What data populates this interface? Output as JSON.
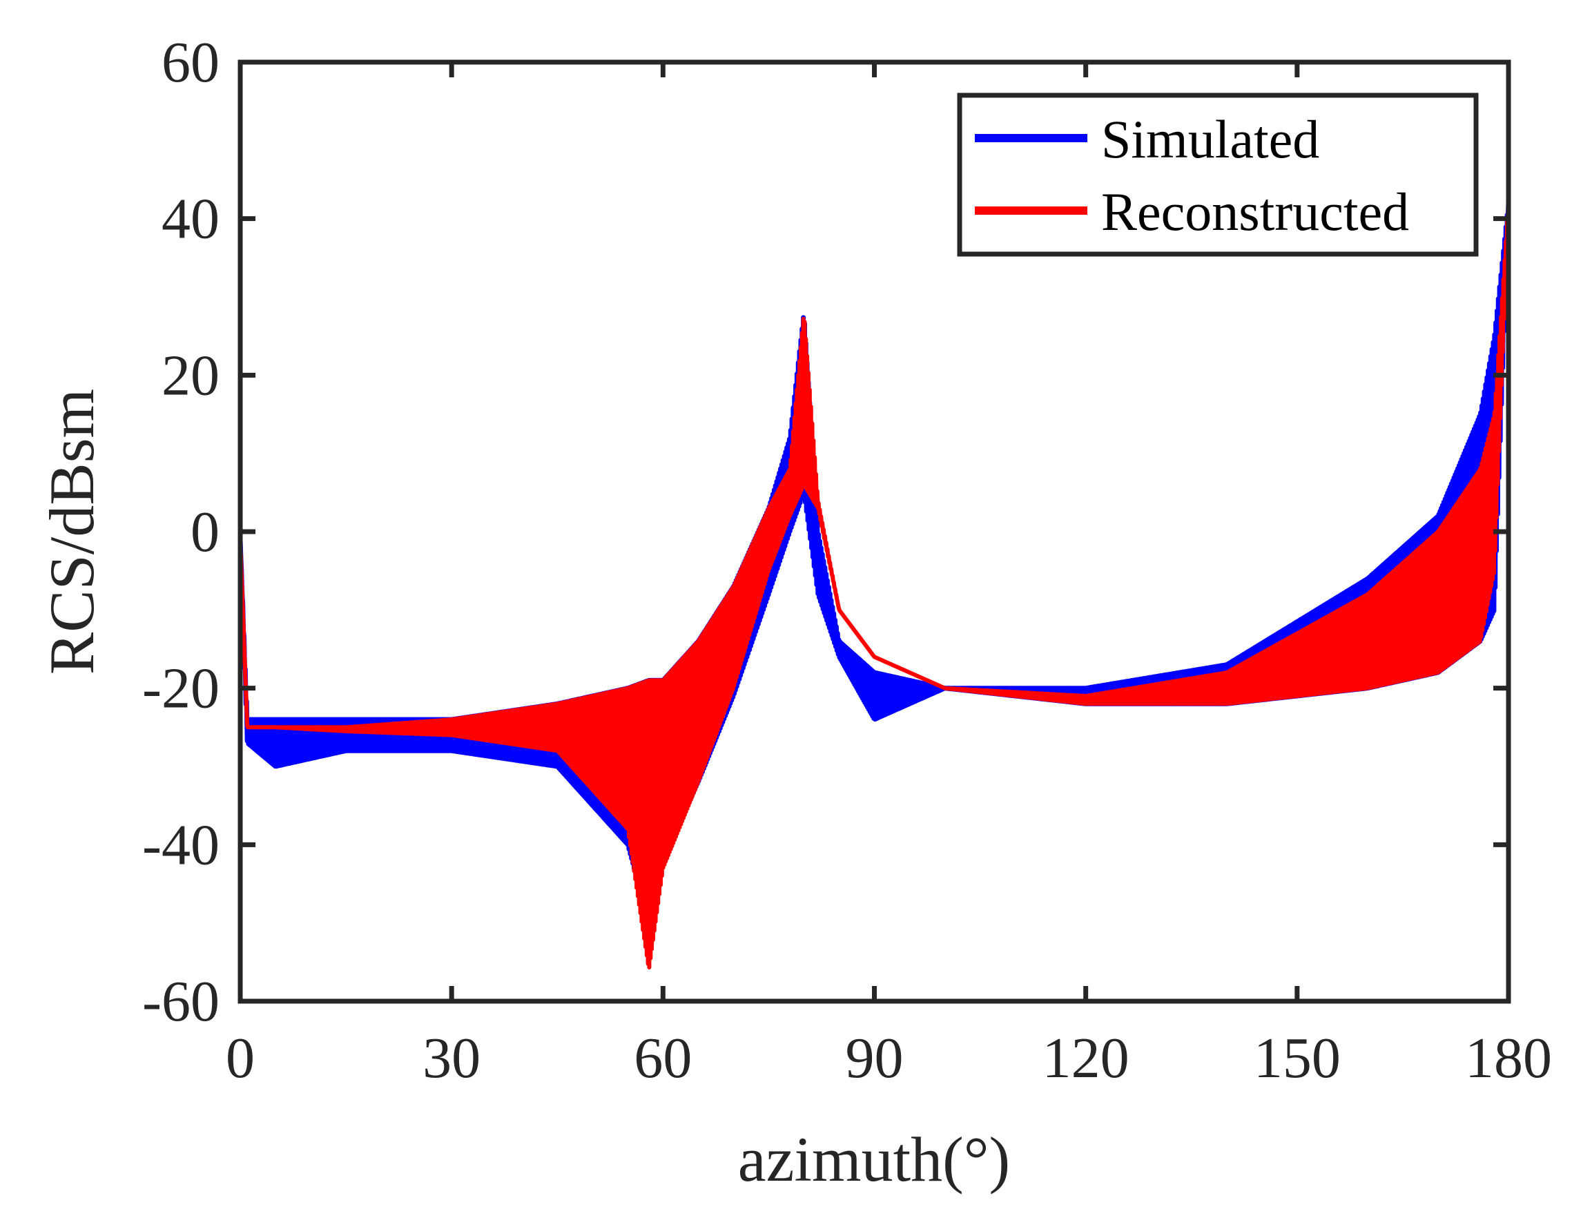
{
  "chart_data": {
    "type": "line",
    "title": "",
    "xlabel": "azimuth(°)",
    "ylabel": "RCS/dBsm",
    "xlim": [
      0,
      180
    ],
    "ylim": [
      -60,
      60
    ],
    "xticks": [
      0,
      30,
      60,
      90,
      120,
      150,
      180
    ],
    "yticks": [
      -60,
      -40,
      -20,
      0,
      20,
      40,
      60
    ],
    "xtick_labels": [
      "0",
      "30",
      "60",
      "90",
      "120",
      "150",
      "180"
    ],
    "ytick_labels": [
      "-60",
      "-40",
      "-20",
      "0",
      "20",
      "40",
      "60"
    ],
    "grid": false,
    "legend_position": "top-right",
    "series": [
      {
        "name": "Simulated",
        "color": "#0000ff",
        "description_points": {
          "x": [
            0,
            1,
            5,
            15,
            30,
            45,
            55,
            58,
            60,
            65,
            70,
            75,
            78,
            80,
            82,
            85,
            90,
            100,
            120,
            140,
            160,
            170,
            176,
            178,
            180
          ],
          "upper": [
            -1,
            -24,
            -24,
            -24,
            -24,
            -22,
            -20,
            -19,
            -19,
            -14,
            -7,
            3,
            12,
            28,
            0,
            -14,
            -18,
            -20,
            -20,
            -17,
            -6,
            2,
            15,
            25,
            42
          ],
          "lower": [
            -1,
            -27,
            -30,
            -28,
            -28,
            -30,
            -40,
            -50,
            -42,
            -32,
            -21,
            -8,
            0,
            5,
            -8,
            -16,
            -24,
            -20,
            -22,
            -22,
            -20,
            -18,
            -14,
            -10,
            42
          ]
        }
      },
      {
        "name": "Reconstructed",
        "color": "#ff0000",
        "description_points": {
          "x": [
            0,
            1,
            5,
            15,
            30,
            45,
            55,
            58,
            60,
            65,
            70,
            75,
            78,
            80,
            82,
            85,
            90,
            100,
            120,
            140,
            160,
            170,
            176,
            178,
            180
          ],
          "upper": [
            -1,
            -25,
            -25,
            -25,
            -24,
            -22,
            -20,
            -19,
            -19,
            -14,
            -7,
            3,
            8,
            28,
            4,
            -10,
            -16,
            -20,
            -21,
            -18,
            -8,
            0,
            8,
            15,
            42
          ],
          "lower": [
            -1,
            -25,
            -25,
            -25.5,
            -26,
            -28,
            -38,
            -56,
            -43,
            -32,
            -20,
            -5,
            2,
            6,
            3,
            -10,
            -16,
            -20,
            -22,
            -22,
            -20,
            -18,
            -14,
            -5,
            42
          ]
        }
      }
    ]
  },
  "legend": {
    "items": [
      {
        "label": "Simulated",
        "color": "#0000ff"
      },
      {
        "label": "Reconstructed",
        "color": "#ff0000"
      }
    ]
  },
  "colors": {
    "axis": "#262626",
    "background": "#ffffff"
  }
}
